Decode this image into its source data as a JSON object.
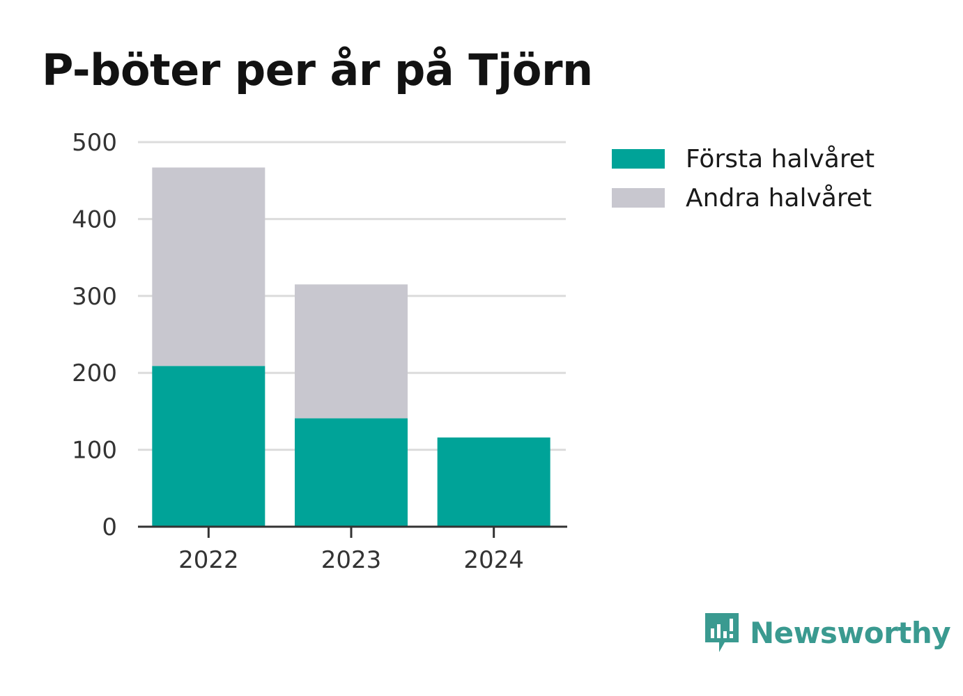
{
  "chart_data": {
    "type": "bar",
    "stacked": true,
    "title": "P-böter per år på Tjörn",
    "categories": [
      "2022",
      "2023",
      "2024"
    ],
    "series": [
      {
        "name": "Första halvåret",
        "color": "#00a398",
        "values": [
          209,
          141,
          116
        ]
      },
      {
        "name": "Andra halvåret",
        "color": "#c8c7cf",
        "values": [
          258,
          174,
          0
        ]
      }
    ],
    "ylim": [
      0,
      500
    ],
    "yticks": [
      "0",
      "100",
      "200",
      "300",
      "400",
      "500"
    ],
    "grid": true,
    "legend_position": "right"
  },
  "brand": {
    "name": "Newsworthy",
    "icon": "newsworthy-logo-icon",
    "color": "#3a9a90"
  }
}
